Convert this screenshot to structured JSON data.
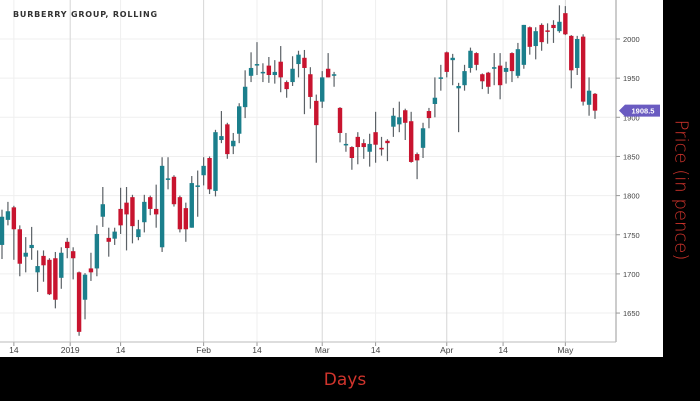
{
  "chart_data": {
    "type": "candlestick",
    "title": "BURBERRY GROUP, ROLLING",
    "xlabel": "Days",
    "ylabel": "Price (in pence)",
    "ylim": [
      1610,
      2050
    ],
    "yticks": [
      1650,
      1700,
      1750,
      1800,
      1850,
      1900,
      1950,
      2000
    ],
    "xticks": [
      {
        "label": "14",
        "date": "2018-12-14",
        "major": false
      },
      {
        "label": "2019",
        "date": "2019-01-01",
        "major": true
      },
      {
        "label": "14",
        "date": "2019-01-14",
        "major": false
      },
      {
        "label": "Feb",
        "date": "2019-02-01",
        "major": true
      },
      {
        "label": "14",
        "date": "2019-02-14",
        "major": false
      },
      {
        "label": "Mar",
        "date": "2019-03-01",
        "major": true
      },
      {
        "label": "14",
        "date": "2019-03-14",
        "major": false
      },
      {
        "label": "Apr",
        "date": "2019-04-01",
        "major": true
      },
      {
        "label": "14",
        "date": "2019-04-14",
        "major": false
      },
      {
        "label": "May",
        "date": "2019-05-01",
        "major": true
      }
    ],
    "grid": true,
    "last_price_label": "1908.5",
    "colors": {
      "up": "#1b7f8c",
      "down": "#c8142f",
      "wick": "#5b6166",
      "badge": "#6a5bc1",
      "axis_title": "#d0342c"
    },
    "columns": [
      "date",
      "open",
      "high",
      "low",
      "close"
    ],
    "candles": [
      [
        "2018-12-12",
        1737,
        1782,
        1719,
        1773
      ],
      [
        "2018-12-13",
        1769,
        1792,
        1762,
        1780
      ],
      [
        "2018-12-14",
        1785,
        1787,
        1718,
        1757
      ],
      [
        "2018-12-17",
        1757,
        1762,
        1697,
        1713
      ],
      [
        "2018-12-18",
        1722,
        1747,
        1702,
        1727
      ],
      [
        "2018-12-19",
        1733,
        1760,
        1718,
        1737
      ],
      [
        "2018-12-20",
        1702,
        1730,
        1677,
        1710
      ],
      [
        "2018-12-21",
        1723,
        1730,
        1690,
        1711
      ],
      [
        "2018-12-24",
        1718,
        1720,
        1673,
        1674
      ],
      [
        "2018-12-27",
        1720,
        1728,
        1656,
        1667
      ],
      [
        "2018-12-28",
        1695,
        1734,
        1681,
        1727
      ],
      [
        "2018-12-31",
        1741,
        1746,
        1720,
        1733
      ],
      [
        "2019-01-02",
        1729,
        1734,
        1693,
        1720
      ],
      [
        "2019-01-03",
        1702,
        1703,
        1621,
        1626
      ],
      [
        "2019-01-04",
        1667,
        1701,
        1642,
        1699
      ],
      [
        "2019-01-07",
        1707,
        1727,
        1691,
        1702
      ],
      [
        "2019-01-08",
        1707,
        1762,
        1697,
        1751
      ],
      [
        "2019-01-09",
        1773,
        1811,
        1760,
        1789
      ],
      [
        "2019-01-10",
        1746,
        1759,
        1722,
        1741
      ],
      [
        "2019-01-11",
        1745,
        1759,
        1737,
        1754
      ],
      [
        "2019-01-14",
        1783,
        1810,
        1751,
        1762
      ],
      [
        "2019-01-15",
        1791,
        1811,
        1730,
        1776
      ],
      [
        "2019-01-16",
        1798,
        1801,
        1739,
        1761
      ],
      [
        "2019-01-17",
        1747,
        1769,
        1743,
        1757
      ],
      [
        "2019-01-18",
        1766,
        1801,
        1753,
        1792
      ],
      [
        "2019-01-21",
        1798,
        1800,
        1775,
        1783
      ],
      [
        "2019-01-22",
        1783,
        1814,
        1759,
        1776
      ],
      [
        "2019-01-23",
        1734,
        1849,
        1728,
        1838
      ],
      [
        "2019-01-24",
        1820,
        1849,
        1808,
        1822
      ],
      [
        "2019-01-25",
        1824,
        1826,
        1786,
        1789
      ],
      [
        "2019-01-28",
        1798,
        1800,
        1753,
        1757
      ],
      [
        "2019-01-29",
        1784,
        1791,
        1741,
        1757
      ],
      [
        "2019-01-30",
        1759,
        1825,
        1759,
        1816
      ],
      [
        "2019-01-31",
        1812,
        1832,
        1773,
        1813
      ],
      [
        "2019-02-01",
        1826,
        1849,
        1813,
        1838
      ],
      [
        "2019-02-04",
        1848,
        1850,
        1802,
        1808
      ],
      [
        "2019-02-05",
        1806,
        1884,
        1799,
        1881
      ],
      [
        "2019-02-06",
        1871,
        1908,
        1867,
        1876
      ],
      [
        "2019-02-07",
        1891,
        1893,
        1847,
        1853
      ],
      [
        "2019-02-08",
        1863,
        1880,
        1853,
        1870
      ],
      [
        "2019-02-11",
        1879,
        1918,
        1867,
        1914
      ],
      [
        "2019-02-12",
        1913,
        1960,
        1899,
        1939
      ],
      [
        "2019-02-13",
        1953,
        1983,
        1945,
        1963
      ],
      [
        "2019-02-14",
        1967,
        1996,
        1954,
        1968
      ],
      [
        "2019-02-15",
        1957,
        1969,
        1945,
        1958
      ],
      [
        "2019-02-18",
        1966,
        1977,
        1944,
        1954
      ],
      [
        "2019-02-19",
        1954,
        1973,
        1943,
        1958
      ],
      [
        "2019-02-20",
        1971,
        1991,
        1932,
        1951
      ],
      [
        "2019-02-21",
        1945,
        1947,
        1925,
        1936
      ],
      [
        "2019-02-22",
        1945,
        1978,
        1940,
        1962
      ],
      [
        "2019-02-25",
        1968,
        1985,
        1951,
        1980
      ],
      [
        "2019-02-26",
        1976,
        1986,
        1904,
        1963
      ],
      [
        "2019-02-27",
        1955,
        1964,
        1911,
        1926
      ],
      [
        "2019-02-28",
        1921,
        1929,
        1842,
        1890
      ],
      [
        "2019-03-01",
        1920,
        1959,
        1912,
        1951
      ],
      [
        "2019-03-04",
        1962,
        1982,
        1951,
        1951
      ],
      [
        "2019-03-05",
        1953,
        1958,
        1939,
        1955
      ],
      [
        "2019-03-06",
        1912,
        1913,
        1868,
        1880
      ],
      [
        "2019-03-07",
        1865,
        1880,
        1856,
        1866
      ],
      [
        "2019-03-08",
        1862,
        1863,
        1833,
        1848
      ],
      [
        "2019-03-11",
        1875,
        1881,
        1840,
        1862
      ],
      [
        "2019-03-12",
        1867,
        1872,
        1847,
        1862
      ],
      [
        "2019-03-13",
        1856,
        1879,
        1837,
        1866
      ],
      [
        "2019-03-14",
        1881,
        1907,
        1842,
        1865
      ],
      [
        "2019-03-15",
        1861,
        1875,
        1851,
        1859
      ],
      [
        "2019-03-18",
        1870,
        1872,
        1844,
        1867
      ],
      [
        "2019-03-19",
        1888,
        1912,
        1875,
        1902
      ],
      [
        "2019-03-20",
        1891,
        1920,
        1881,
        1900
      ],
      [
        "2019-03-21",
        1909,
        1911,
        1871,
        1893
      ],
      [
        "2019-03-22",
        1895,
        1907,
        1842,
        1843
      ],
      [
        "2019-03-25",
        1853,
        1855,
        1821,
        1845
      ],
      [
        "2019-03-26",
        1861,
        1893,
        1848,
        1886
      ],
      [
        "2019-03-27",
        1908,
        1912,
        1886,
        1899
      ],
      [
        "2019-03-28",
        1917,
        1951,
        1900,
        1925
      ],
      [
        "2019-03-29",
        1950,
        1967,
        1934,
        1951
      ],
      [
        "2019-04-01",
        1983,
        1984,
        1951,
        1958
      ],
      [
        "2019-04-02",
        1973,
        1981,
        1941,
        1976
      ],
      [
        "2019-04-03",
        1937,
        1944,
        1881,
        1940
      ],
      [
        "2019-04-04",
        1941,
        1967,
        1934,
        1959
      ],
      [
        "2019-04-05",
        1963,
        1989,
        1957,
        1985
      ],
      [
        "2019-04-08",
        1982,
        1983,
        1960,
        1967
      ],
      [
        "2019-04-09",
        1955,
        1956,
        1936,
        1946
      ],
      [
        "2019-04-10",
        1957,
        1958,
        1930,
        1939
      ],
      [
        "2019-04-11",
        1962,
        1982,
        1941,
        1964
      ],
      [
        "2019-04-12",
        1966,
        1982,
        1923,
        1941
      ],
      [
        "2019-04-15",
        1958,
        1971,
        1943,
        1963
      ],
      [
        "2019-04-16",
        1982,
        1983,
        1945,
        1959
      ],
      [
        "2019-04-17",
        1953,
        1995,
        1950,
        1987
      ],
      [
        "2019-04-18",
        1967,
        2018,
        1962,
        2018
      ],
      [
        "2019-04-23",
        2015,
        2016,
        1980,
        1990
      ],
      [
        "2019-04-24",
        1991,
        2015,
        1974,
        2010
      ],
      [
        "2019-04-25",
        2018,
        2020,
        1985,
        1996
      ],
      [
        "2019-04-26",
        2011,
        2020,
        1994,
        2010
      ],
      [
        "2019-04-29",
        2018,
        2024,
        1995,
        2014
      ],
      [
        "2019-04-30",
        2010,
        2043,
        2008,
        2022
      ],
      [
        "2019-05-01",
        2033,
        2042,
        2005,
        2006
      ],
      [
        "2019-05-02",
        2004,
        2005,
        1937,
        1960
      ],
      [
        "2019-05-03",
        1963,
        2004,
        1954,
        2000
      ],
      [
        "2019-05-07",
        2003,
        2006,
        1915,
        1920
      ],
      [
        "2019-05-08",
        1916,
        1951,
        1902,
        1934
      ],
      [
        "2019-05-09",
        1930,
        1931,
        1898,
        1908.5
      ]
    ]
  }
}
